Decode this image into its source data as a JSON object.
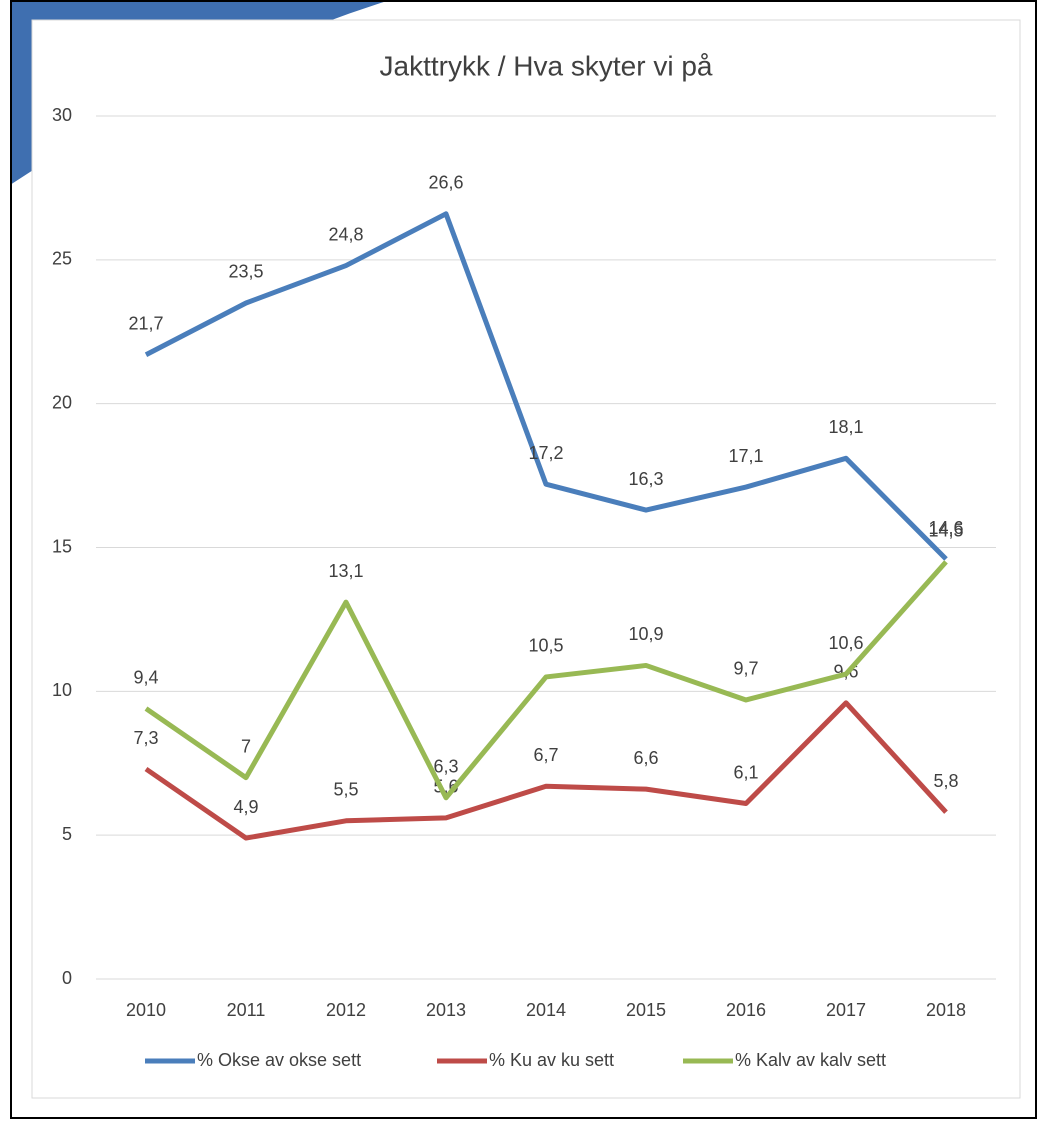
{
  "chart_data": {
    "type": "line",
    "title": "Jakttrykk / Hva skyter vi på",
    "categories": [
      "2010",
      "2011",
      "2012",
      "2013",
      "2014",
      "2015",
      "2016",
      "2017",
      "2018"
    ],
    "series": [
      {
        "name": "% Okse av okse sett",
        "color": "#4a7ebb",
        "values": [
          21.7,
          23.5,
          24.8,
          26.6,
          17.2,
          16.3,
          17.1,
          18.1,
          14.6
        ],
        "value_labels": [
          "21,7",
          "23,5",
          "24,8",
          "26,6",
          "17,2",
          "16,3",
          "17,1",
          "18,1",
          "14,6"
        ]
      },
      {
        "name": "% Ku av ku sett",
        "color": "#be4b48",
        "values": [
          7.3,
          4.9,
          5.5,
          5.6,
          6.7,
          6.6,
          6.1,
          9.6,
          5.8
        ],
        "value_labels": [
          "7,3",
          "4,9",
          "5,5",
          "5,6",
          "6,7",
          "6,6",
          "6,1",
          "9,6",
          "5,8"
        ]
      },
      {
        "name": "% Kalv av kalv sett",
        "color": "#98b954",
        "values": [
          9.4,
          7,
          13.1,
          6.3,
          10.5,
          10.9,
          9.7,
          10.6,
          14.5
        ],
        "value_labels": [
          "9,4",
          "7",
          "13,1",
          "6,3",
          "10,5",
          "10,9",
          "9,7",
          "10,6",
          "14,5"
        ]
      }
    ],
    "ylim": [
      0,
      30
    ],
    "yticks": [
      0,
      5,
      10,
      15,
      20,
      25,
      30
    ],
    "grid": true,
    "legend": "bottom"
  }
}
